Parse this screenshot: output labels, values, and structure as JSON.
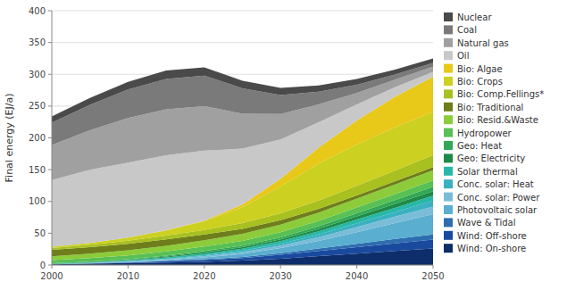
{
  "chart_data": {
    "type": "area",
    "stacked": true,
    "grid": true,
    "legend": "right",
    "y_label": "Final energy (EJ/a)",
    "x": [
      2000,
      2005,
      2010,
      2015,
      2020,
      2025,
      2030,
      2035,
      2040,
      2045,
      2050
    ],
    "xlim": [
      2000,
      2050
    ],
    "xticks": [
      2000,
      2010,
      2020,
      2030,
      2040,
      2050
    ],
    "ylim": [
      0,
      400
    ],
    "yticks": [
      0,
      50,
      100,
      150,
      200,
      250,
      300,
      350,
      400
    ],
    "series": [
      {
        "name": "Wind: On-shore",
        "color": "#0d2d6b",
        "values": [
          1,
          2,
          3,
          4,
          5,
          7,
          10,
          14,
          18,
          22,
          26
        ]
      },
      {
        "name": "Wind: Off-shore",
        "color": "#1a4a9e",
        "values": [
          0.2,
          0.5,
          1,
          2,
          3,
          4,
          6,
          8,
          10,
          12,
          14
        ]
      },
      {
        "name": "Wave & Tidal",
        "color": "#2e6db0",
        "values": [
          0,
          0,
          0.2,
          0.5,
          1,
          1.5,
          2.5,
          4,
          5.5,
          7,
          8
        ]
      },
      {
        "name": "Photovoltaic solar",
        "color": "#5aaed0",
        "values": [
          0,
          0.3,
          0.8,
          1.5,
          3,
          5,
          8,
          12,
          18,
          25,
          32
        ]
      },
      {
        "name": "Conc. solar: Power",
        "color": "#7bbdd8",
        "values": [
          0,
          0.2,
          0.5,
          1,
          2,
          3,
          4,
          6,
          8,
          10,
          12
        ]
      },
      {
        "name": "Conc. solar: Heat",
        "color": "#3ab0c0",
        "values": [
          0,
          0.2,
          0.5,
          1,
          1.5,
          2,
          3,
          4,
          6,
          7,
          9
        ]
      },
      {
        "name": "Solar thermal",
        "color": "#28b8a8",
        "values": [
          0.5,
          0.8,
          1.2,
          1.8,
          2.5,
          3,
          4,
          5,
          6,
          7,
          8
        ]
      },
      {
        "name": "Geo: Electricity",
        "color": "#1e8a48",
        "values": [
          0.5,
          0.7,
          1,
          1.5,
          2,
          2.5,
          3,
          4,
          5,
          6,
          7
        ]
      },
      {
        "name": "Geo: Heat",
        "color": "#32a855",
        "values": [
          0.5,
          0.7,
          1,
          1.5,
          2,
          2.5,
          3,
          4,
          5,
          6,
          7
        ]
      },
      {
        "name": "Hydropower",
        "color": "#58c055",
        "values": [
          5,
          5.5,
          6,
          6.5,
          7,
          7.5,
          8,
          8.5,
          9,
          9.5,
          10
        ]
      },
      {
        "name": "Bio: Resid.&Waste",
        "color": "#8ccc3a",
        "values": [
          6,
          7,
          8,
          9,
          10,
          11,
          12,
          13,
          14,
          15,
          16
        ]
      },
      {
        "name": "Bio: Traditional",
        "color": "#6e7e1a",
        "values": [
          10,
          10,
          10,
          10,
          9,
          8,
          7,
          6,
          5,
          5,
          5
        ]
      },
      {
        "name": "Bio: Comp.Fellings*",
        "color": "#a8c020",
        "values": [
          3,
          4,
          5,
          6,
          7,
          9,
          11,
          13,
          15,
          17,
          19
        ]
      },
      {
        "name": "Bio: Crops",
        "color": "#ccd020",
        "values": [
          2,
          3,
          5,
          8,
          14,
          25,
          42,
          58,
          65,
          68,
          68
        ]
      },
      {
        "name": "Bio: Algae",
        "color": "#e8c818",
        "values": [
          0,
          0,
          0,
          0.5,
          1,
          4,
          12,
          25,
          38,
          48,
          55
        ]
      },
      {
        "name": "Oil",
        "color": "#c8c8c8",
        "values": [
          105,
          115,
          118,
          118,
          110,
          88,
          62,
          40,
          25,
          15,
          8
        ]
      },
      {
        "name": "Natural gas",
        "color": "#a0a0a0",
        "values": [
          55,
          62,
          70,
          72,
          70,
          55,
          40,
          28,
          18,
          12,
          8
        ]
      },
      {
        "name": "Coal",
        "color": "#7a7a7a",
        "values": [
          35,
          40,
          45,
          48,
          48,
          40,
          30,
          20,
          13,
          8,
          6
        ]
      },
      {
        "name": "Nuclear",
        "color": "#4a4a4a",
        "values": [
          10,
          11,
          12,
          13,
          13,
          12,
          11,
          10,
          9,
          8,
          7
        ]
      }
    ]
  }
}
